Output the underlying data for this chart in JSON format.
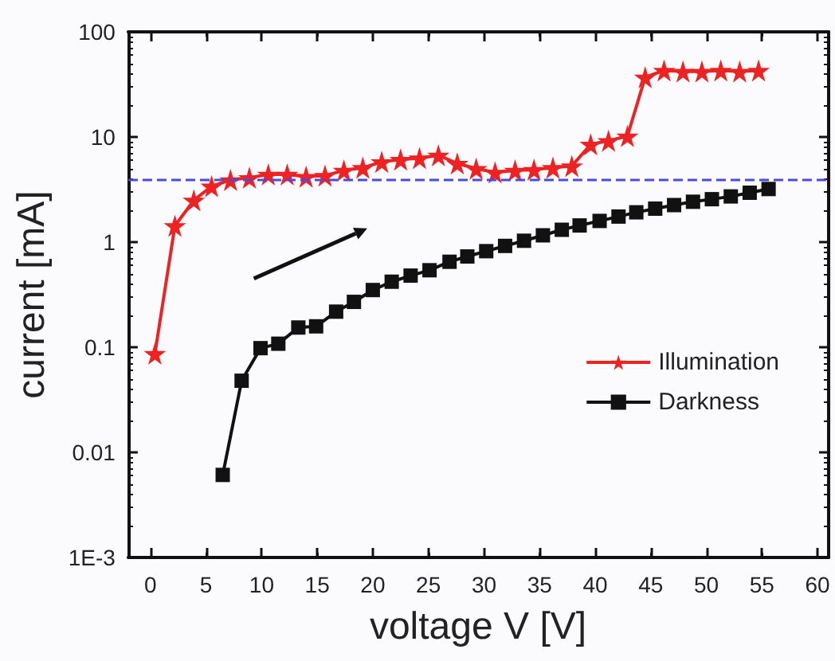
{
  "chart_data": {
    "type": "line",
    "xlabel": "voltage V [V]",
    "ylabel": "current [mA]",
    "log": "y",
    "xlim": [
      -2,
      61
    ],
    "ylim": [
      0.001,
      100
    ],
    "xticks": [
      0,
      5,
      10,
      15,
      20,
      25,
      30,
      35,
      40,
      45,
      50,
      55,
      60
    ],
    "yticks": [
      {
        "value": 0.001,
        "label": "1E-3"
      },
      0.01,
      0.1,
      1,
      10,
      100
    ],
    "grid": false,
    "legend": "right",
    "ref_lines": [
      {
        "axis": "y",
        "value": 3.9,
        "color": "#4a4ae0",
        "line_style": "dashed"
      }
    ],
    "series": [
      {
        "name": "Illumination",
        "color": "#ee2222",
        "marker": "star",
        "x": [
          0.4,
          2.2,
          3.9,
          5.5,
          7.2,
          8.9,
          10.6,
          12.3,
          14.0,
          15.7,
          17.4,
          19.1,
          20.8,
          22.5,
          24.2,
          25.9,
          27.6,
          29.3,
          31.0,
          32.8,
          34.5,
          36.2,
          37.9,
          39.6,
          41.2,
          42.9,
          44.5,
          46.2,
          47.9,
          49.6,
          51.3,
          53.0,
          54.7
        ],
        "values": [
          0.087,
          1.43,
          2.5,
          3.4,
          3.9,
          4.1,
          4.4,
          4.4,
          4.2,
          4.3,
          4.8,
          5.1,
          5.8,
          6.1,
          6.3,
          6.7,
          5.6,
          5.0,
          4.6,
          4.8,
          4.9,
          5.1,
          5.3,
          8.5,
          9.2,
          10.2,
          37,
          43,
          42,
          42,
          43,
          42,
          43
        ]
      },
      {
        "name": "Darkness",
        "color": "#111111",
        "marker": "square",
        "x": [
          6.5,
          8.2,
          9.9,
          11.5,
          13.3,
          14.9,
          16.7,
          18.3,
          20.0,
          21.7,
          23.4,
          25.1,
          26.9,
          28.5,
          30.2,
          31.9,
          33.6,
          35.3,
          37.0,
          38.6,
          40.4,
          42.1,
          43.7,
          45.4,
          47.1,
          48.8,
          50.5,
          52.2,
          53.9,
          55.6
        ],
        "values": [
          0.0061,
          0.048,
          0.098,
          0.108,
          0.154,
          0.158,
          0.218,
          0.27,
          0.35,
          0.42,
          0.48,
          0.54,
          0.65,
          0.73,
          0.82,
          0.92,
          1.03,
          1.16,
          1.31,
          1.44,
          1.59,
          1.75,
          1.92,
          2.08,
          2.25,
          2.42,
          2.56,
          2.72,
          2.95,
          3.2
        ]
      }
    ]
  }
}
